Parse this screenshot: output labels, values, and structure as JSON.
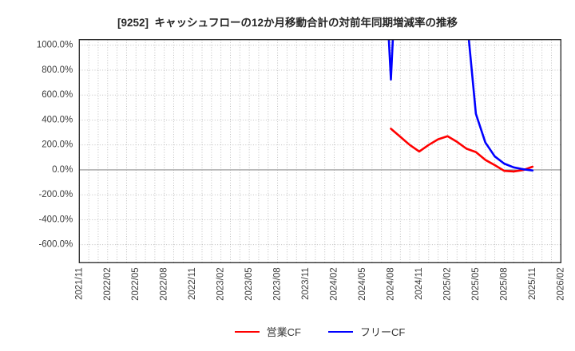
{
  "chart_data": {
    "type": "line",
    "title": "[9252]  キャッシュフローの12か月移動合計の対前年同期増減率の推移",
    "x_tick_labels": [
      "2021/11",
      "2022/02",
      "2022/05",
      "2022/08",
      "2022/11",
      "2023/02",
      "2023/05",
      "2023/08",
      "2023/11",
      "2024/02",
      "2024/05",
      "2024/08",
      "2024/11",
      "2025/02",
      "2025/05",
      "2025/08",
      "2025/11",
      "2026/02"
    ],
    "xlim_months": [
      "2021/11",
      "2026/02"
    ],
    "ylim": [
      -745,
      1045
    ],
    "y_ticks": [
      {
        "value": 1000,
        "label": "1000.0%"
      },
      {
        "value": 800,
        "label": "800.0%"
      },
      {
        "value": 600,
        "label": "600.0%"
      },
      {
        "value": 400,
        "label": "400.0%"
      },
      {
        "value": 200,
        "label": "200.0%"
      },
      {
        "value": 0,
        "label": "0.0%"
      },
      {
        "value": -200,
        "label": "-200.0%"
      },
      {
        "value": -400,
        "label": "-400.0%"
      },
      {
        "value": -600,
        "label": "-600.0%"
      }
    ],
    "zero_line_value": 0,
    "grid": {
      "x_interval": "monthly",
      "y_interval_pct": 200,
      "style": "dotted"
    },
    "legend_position": "bottom-center",
    "series": [
      {
        "name": "営業CF",
        "color": "#ff0000",
        "points": [
          [
            "2024/08",
            330
          ],
          [
            "2024/09",
            265
          ],
          [
            "2024/10",
            200
          ],
          [
            "2024/11",
            147
          ],
          [
            "2024/12",
            200
          ],
          [
            "2025/01",
            245
          ],
          [
            "2025/02",
            270
          ],
          [
            "2025/03",
            225
          ],
          [
            "2025/04",
            170
          ],
          [
            "2025/05",
            143
          ],
          [
            "2025/06",
            80
          ],
          [
            "2025/07",
            38
          ],
          [
            "2025/08",
            -8
          ],
          [
            "2025/09",
            -13
          ],
          [
            "2025/10",
            -2
          ],
          [
            "2025/11",
            25
          ]
        ]
      },
      {
        "name": "フリーCF",
        "color": "#0000ff",
        "points": [
          [
            "2024/07",
            2200
          ],
          [
            "2024/08",
            725
          ],
          [
            "2024/09",
            2300
          ],
          [
            "2025/04",
            1250
          ],
          [
            "2025/05",
            450
          ],
          [
            "2025/06",
            220
          ],
          [
            "2025/07",
            108
          ],
          [
            "2025/08",
            50
          ],
          [
            "2025/09",
            20
          ],
          [
            "2025/10",
            5
          ],
          [
            "2025/11",
            -5
          ]
        ]
      }
    ],
    "colors": {
      "grid": "#b8b8b8",
      "zero_line": "#8f8f8f",
      "border": "#262626",
      "tick_text": "#3d3d3d"
    }
  }
}
